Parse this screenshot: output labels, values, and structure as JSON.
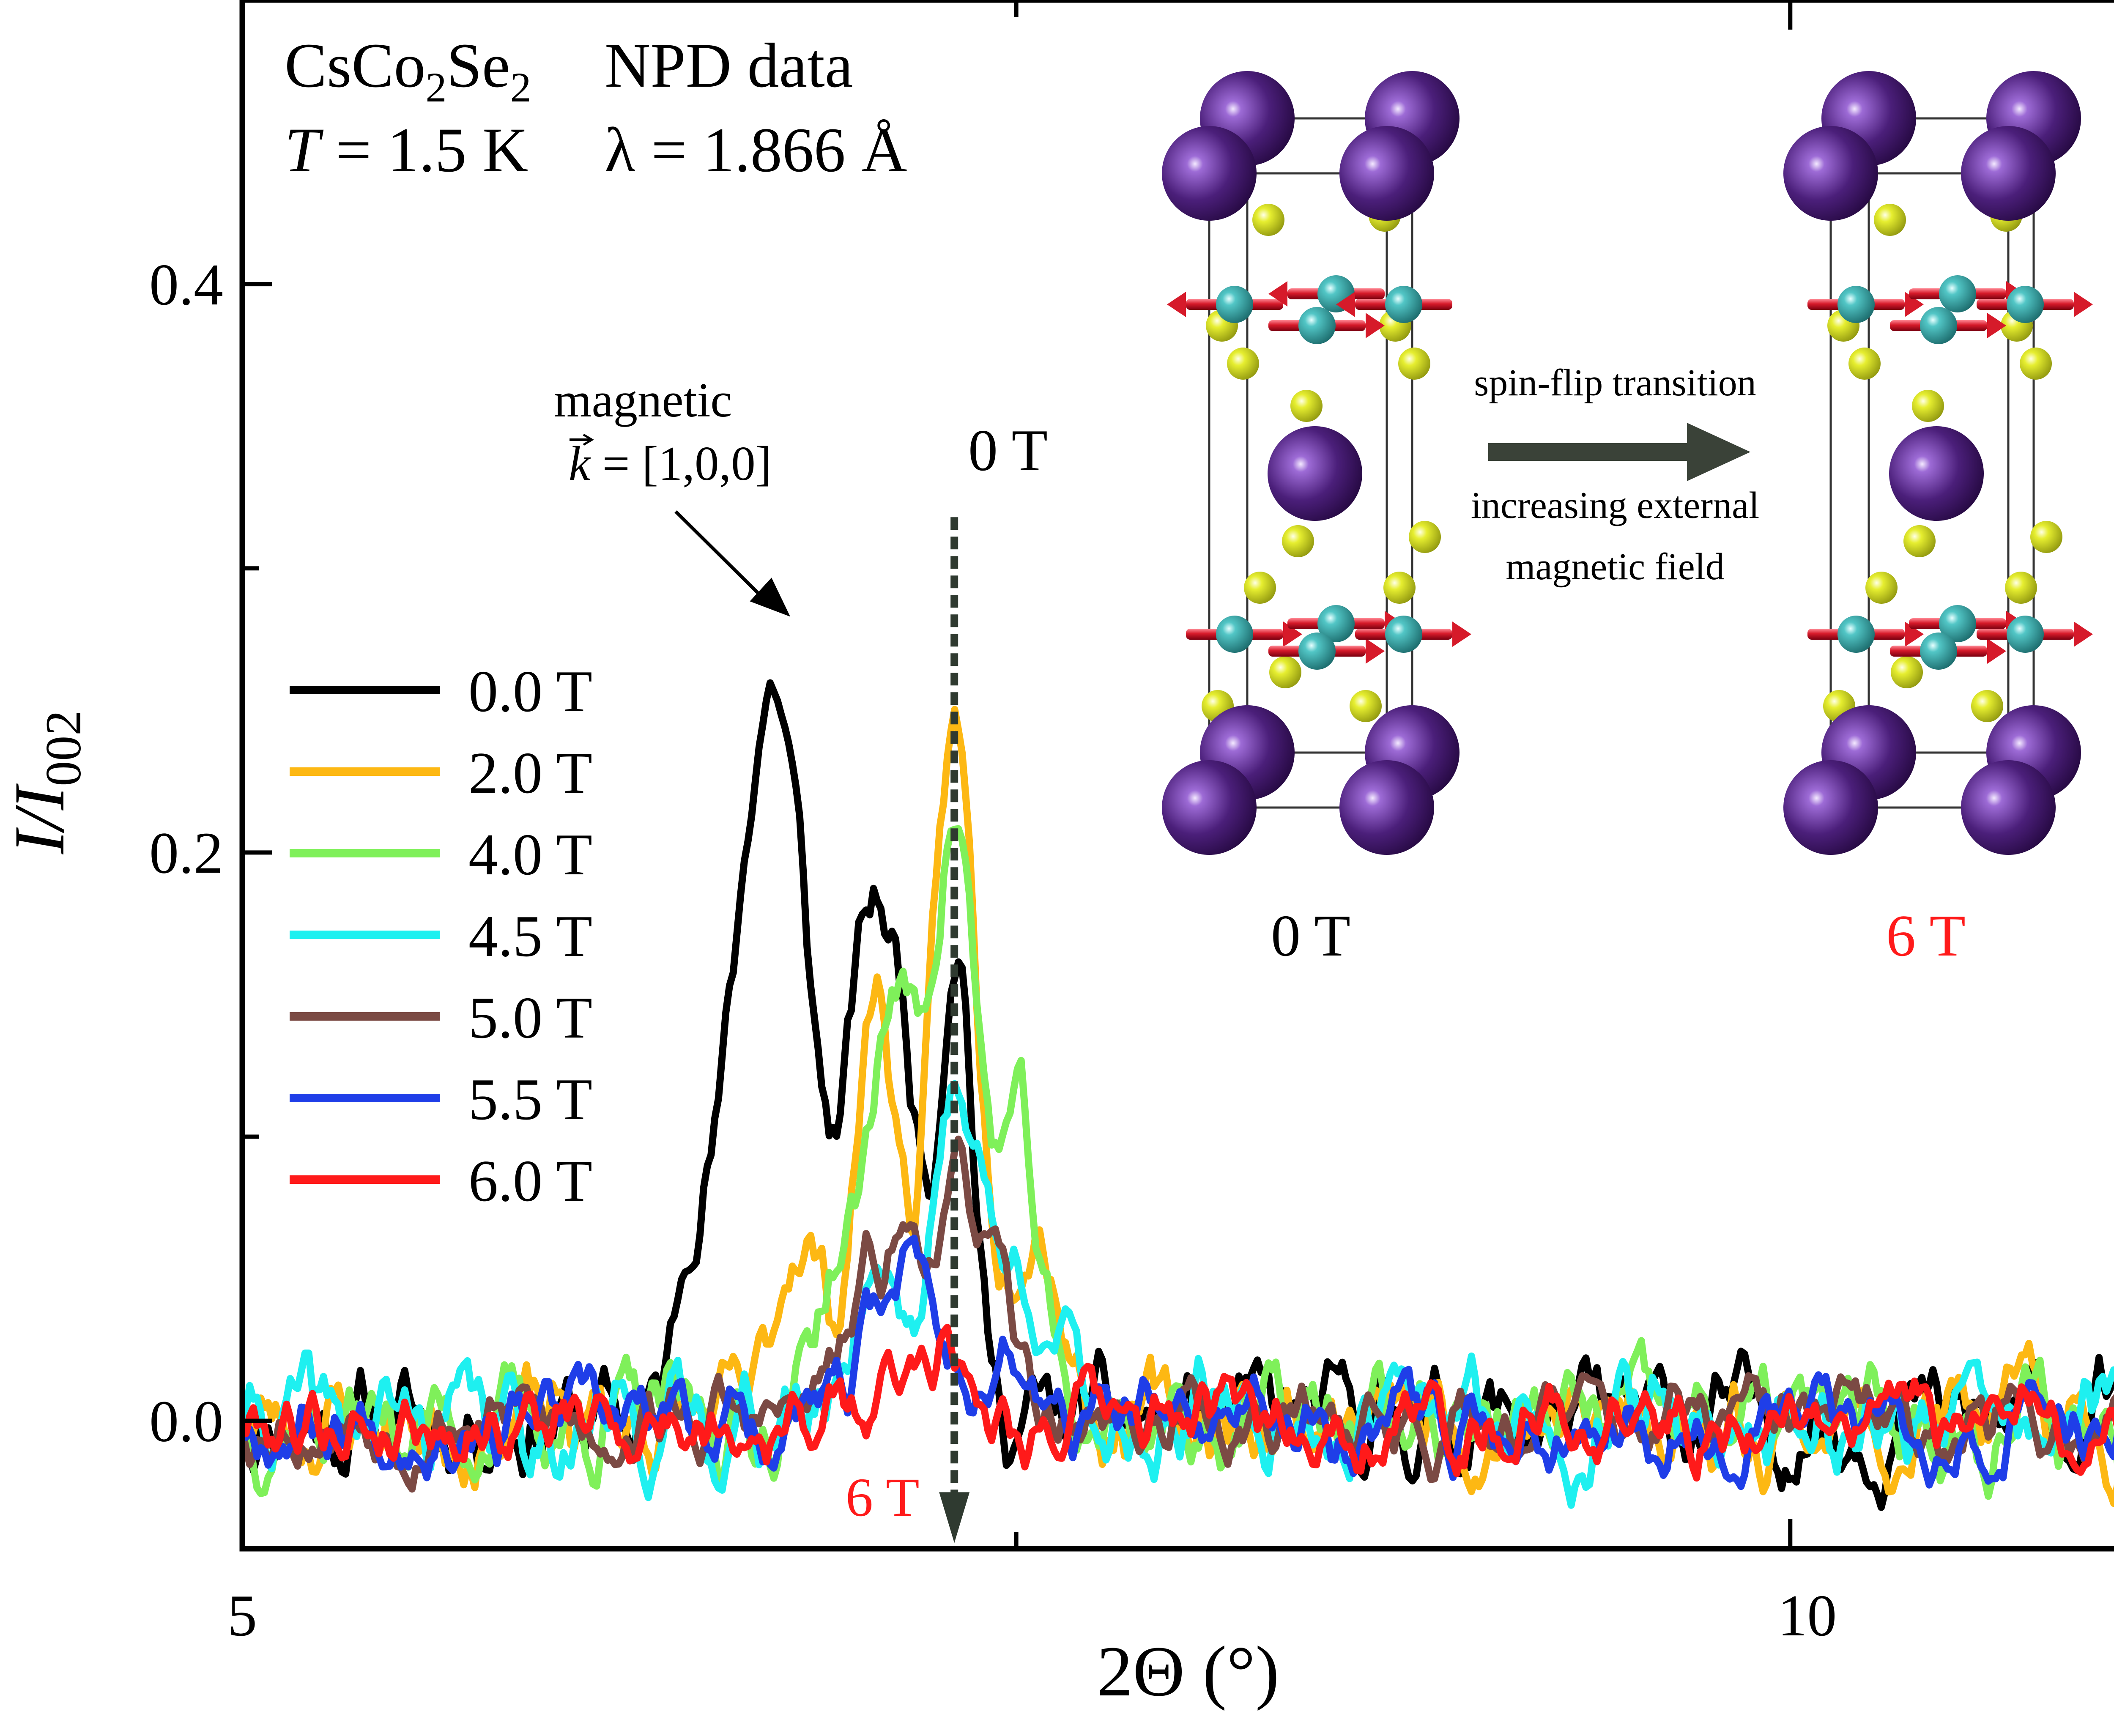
{
  "chart_data": {
    "type": "line",
    "title": "",
    "xlabel": "2Θ (°)",
    "ylabel_main": "I/I",
    "ylabel_sub": "002",
    "xlim": [
      5,
      11.2
    ],
    "ylim": [
      -0.045,
      0.5
    ],
    "xticks": [
      {
        "value": 5,
        "label": "5"
      },
      {
        "value": 10,
        "label": "10"
      }
    ],
    "xticks_minor": [
      7.5
    ],
    "yticks": [
      {
        "value": 0.0,
        "label": "0.0"
      },
      {
        "value": 0.2,
        "label": "0.2"
      },
      {
        "value": 0.4,
        "label": "0.4"
      }
    ],
    "yticks_minor": [
      0.1,
      0.3
    ],
    "header": {
      "formula_parts": [
        "CsCo",
        "2",
        "Se",
        "2"
      ],
      "npd": "NPD data",
      "temp_var": "T",
      "temp_val": " = 1.5 K",
      "wavelength": "λ = 1.866 Å"
    },
    "annotations": {
      "magnetic": "magnetic",
      "kvec_var": "k",
      "kvec_val": " = [1,0,0]",
      "top_field": "0 T",
      "bottom_field": "6 T"
    },
    "series": [
      {
        "name": "0.0 T",
        "color": "#000000",
        "noise": 0.02,
        "seed": 11,
        "peaks": [
          [
            6.46,
            0.055,
            0.05
          ],
          [
            6.71,
            0.26,
            0.12
          ],
          [
            7.1,
            0.15,
            0.09
          ],
          [
            7.31,
            0.17,
            0.05
          ],
          [
            7.0,
            0.07,
            0.06
          ]
        ]
      },
      {
        "name": "2.0 T",
        "color": "#fdb813",
        "noise": 0.02,
        "seed": 23,
        "peaks": [
          [
            6.8,
            0.07,
            0.07
          ],
          [
            7.05,
            0.15,
            0.07
          ],
          [
            7.3,
            0.24,
            0.07
          ],
          [
            7.55,
            0.08,
            0.09
          ]
        ]
      },
      {
        "name": "4.0 T",
        "color": "#7ff05a",
        "noise": 0.02,
        "seed": 37,
        "peaks": [
          [
            7.1,
            0.15,
            0.08
          ],
          [
            7.3,
            0.21,
            0.07
          ],
          [
            7.5,
            0.1,
            0.07
          ],
          [
            6.9,
            0.05,
            0.06
          ]
        ]
      },
      {
        "name": "4.5 T",
        "color": "#1ef0f0",
        "noise": 0.02,
        "seed": 41,
        "peaks": [
          [
            7.05,
            0.06,
            0.08
          ],
          [
            7.32,
            0.12,
            0.08
          ],
          [
            7.55,
            0.05,
            0.08
          ]
        ]
      },
      {
        "name": "5.0 T",
        "color": "#7b4a44",
        "noise": 0.016,
        "seed": 53,
        "peaks": [
          [
            7.1,
            0.06,
            0.12
          ],
          [
            7.35,
            0.07,
            0.1
          ]
        ]
      },
      {
        "name": "5.5 T",
        "color": "#1f3ee8",
        "noise": 0.016,
        "seed": 67,
        "peaks": [
          [
            7.15,
            0.06,
            0.1
          ],
          [
            7.45,
            0.02,
            0.08
          ]
        ]
      },
      {
        "name": "6.0 T",
        "color": "#ff1a1a",
        "noise": 0.016,
        "seed": 79,
        "peaks": [
          [
            7.25,
            0.03,
            0.1
          ]
        ]
      }
    ],
    "field_arrow": {
      "x": 7.3,
      "y_top": 0.318,
      "y_bottom": -0.04,
      "color": "#2f3a30"
    },
    "pointer_arrow": {
      "from": [
        6.4,
        0.32
      ],
      "to": [
        6.77,
        0.283
      ]
    }
  },
  "inset": {
    "left_label": "0 T",
    "right_label": "6 T",
    "right_label_color": "#ff1a1a",
    "transition_line1": "spin-flip transition",
    "transition_line2": "increasing external",
    "transition_line3": "magnetic field",
    "cs_color": "#4b1f7a",
    "co_color": "#2a9a9a",
    "se_color": "#d8e020",
    "moment_color": "#d61a2a",
    "arrow_color": "#3a4238"
  }
}
